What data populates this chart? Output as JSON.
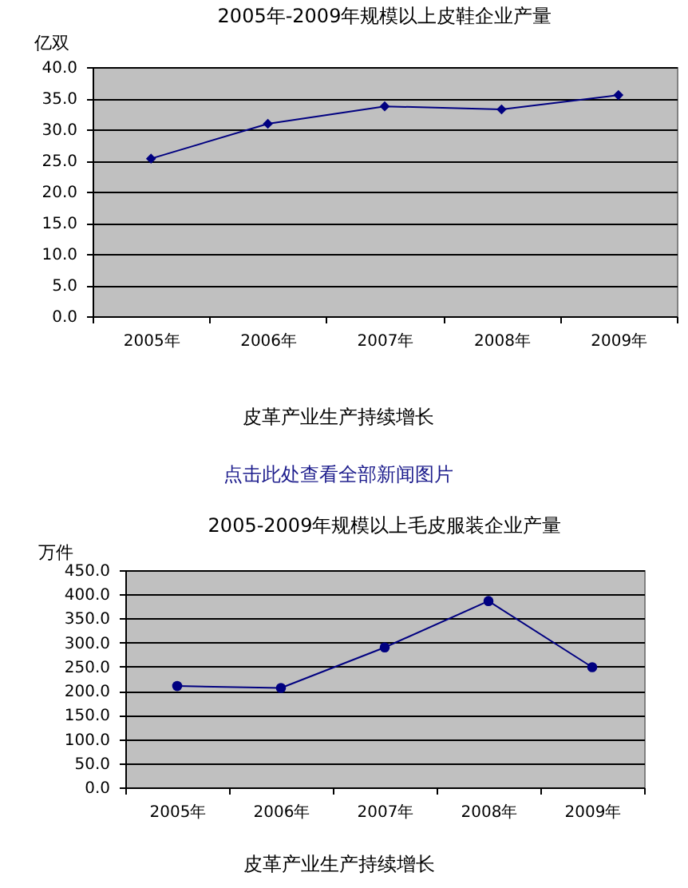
{
  "chart_data": [
    {
      "type": "line",
      "title": "2005年-2009年规模以上皮鞋企业产量",
      "ylabel": "亿双",
      "categories": [
        "2005年",
        "2006年",
        "2007年",
        "2008年",
        "2009年"
      ],
      "values": [
        25.3,
        30.9,
        33.7,
        33.2,
        35.5
      ],
      "color": "#000080",
      "marker": "diamond",
      "line_style": "solid",
      "ylim": [
        0,
        40
      ],
      "yticks": [
        {
          "value": 0,
          "label": "0.0"
        },
        {
          "value": 5,
          "label": "5.0"
        },
        {
          "value": 10,
          "label": "10.0"
        },
        {
          "value": 15,
          "label": "15.0"
        },
        {
          "value": 20,
          "label": "20.0"
        },
        {
          "value": 25,
          "label": "25.0"
        },
        {
          "value": 30,
          "label": "30.0"
        },
        {
          "value": 35,
          "label": "35.0"
        },
        {
          "value": 40,
          "label": "40.0"
        }
      ],
      "grid": "y",
      "annotations": [
        "皮革产业生产持续增长",
        "点击此处查看全部新闻图片"
      ]
    },
    {
      "type": "line",
      "title": "2005-2009年规模以上毛皮服装企业产量",
      "ylabel": "万件",
      "categories": [
        "2005年",
        "2006年",
        "2007年",
        "2008年",
        "2009年"
      ],
      "values": [
        210,
        206,
        290,
        386,
        249
      ],
      "color": "#000080",
      "marker": "circle",
      "line_style": "solid",
      "ylim": [
        0,
        450
      ],
      "yticks": [
        {
          "value": 0,
          "label": "0.0"
        },
        {
          "value": 50,
          "label": "50.0"
        },
        {
          "value": 100,
          "label": "100.0"
        },
        {
          "value": 150,
          "label": "150.0"
        },
        {
          "value": 200,
          "label": "200.0"
        },
        {
          "value": 250,
          "label": "250.0"
        },
        {
          "value": 300,
          "label": "300.0"
        },
        {
          "value": 350,
          "label": "350.0"
        },
        {
          "value": 400,
          "label": "400.0"
        },
        {
          "value": 450,
          "label": "450.0"
        }
      ],
      "grid": "y",
      "annotations": [
        "皮革产业生产持续增长"
      ]
    }
  ]
}
